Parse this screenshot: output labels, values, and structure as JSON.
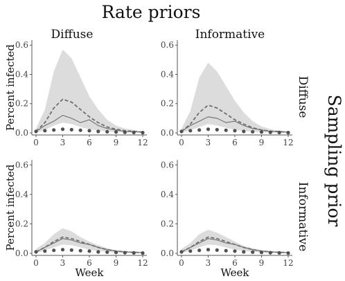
{
  "title": "Rate priors",
  "side_title": "Sampling prior",
  "col_strips": [
    "Diffuse",
    "Informative"
  ],
  "row_strips": [
    "Diffuse",
    "Informative"
  ],
  "xlabel": "Week",
  "ylabel": "Percent infected",
  "chart_data": [
    {
      "type": "area",
      "title": "",
      "panel": {
        "rate_prior": "Diffuse",
        "sampling_prior": "Diffuse"
      },
      "x": [
        0,
        1,
        2,
        3,
        4,
        5,
        6,
        7,
        8,
        9,
        10,
        11,
        12
      ],
      "xlim": [
        0,
        12
      ],
      "ylim": [
        0,
        0.62
      ],
      "xticks": [
        0,
        3,
        6,
        9,
        12
      ],
      "yticks": [
        0.0,
        0.2,
        0.4,
        0.6
      ],
      "tick_labels_y": [
        "0.0",
        "0.2",
        "0.4",
        "0.6"
      ],
      "tick_labels_x": [
        "0",
        "3",
        "6",
        "9",
        "12"
      ],
      "series": [
        {
          "style": "band",
          "lower": [
            0.0,
            0.02,
            0.05,
            0.07,
            0.06,
            0.04,
            0.025,
            0.015,
            0.01,
            0.005,
            0.003,
            0.002,
            0.001
          ],
          "upper": [
            0.03,
            0.16,
            0.42,
            0.57,
            0.51,
            0.38,
            0.25,
            0.16,
            0.09,
            0.05,
            0.03,
            0.02,
            0.01
          ]
        },
        {
          "style": "dashed",
          "values": [
            0.01,
            0.07,
            0.17,
            0.23,
            0.21,
            0.16,
            0.11,
            0.07,
            0.04,
            0.025,
            0.015,
            0.01,
            0.005
          ]
        },
        {
          "style": "solid",
          "values": [
            0.01,
            0.05,
            0.08,
            0.12,
            0.1,
            0.07,
            0.09,
            0.05,
            0.03,
            0.02,
            0.01,
            0.008,
            0.005
          ]
        },
        {
          "style": "points",
          "values": [
            0.01,
            0.015,
            0.02,
            0.025,
            0.022,
            0.018,
            0.015,
            0.01,
            0.008,
            0.006,
            0.004,
            0.003,
            0.002
          ]
        }
      ]
    },
    {
      "type": "area",
      "title": "",
      "panel": {
        "rate_prior": "Informative",
        "sampling_prior": "Diffuse"
      },
      "x": [
        0,
        1,
        2,
        3,
        4,
        5,
        6,
        7,
        8,
        9,
        10,
        11,
        12
      ],
      "xlim": [
        0,
        12
      ],
      "ylim": [
        0,
        0.62
      ],
      "xticks": [
        0,
        3,
        6,
        9,
        12
      ],
      "yticks": [
        0.0,
        0.2,
        0.4,
        0.6
      ],
      "tick_labels_y": [
        "0.0",
        "0.2",
        "0.4",
        "0.6"
      ],
      "tick_labels_x": [
        "0",
        "3",
        "6",
        "9",
        "12"
      ],
      "series": [
        {
          "style": "band",
          "lower": [
            0.0,
            0.02,
            0.04,
            0.06,
            0.05,
            0.035,
            0.02,
            0.012,
            0.008,
            0.004,
            0.003,
            0.002,
            0.001
          ],
          "upper": [
            0.03,
            0.15,
            0.38,
            0.48,
            0.42,
            0.32,
            0.22,
            0.14,
            0.08,
            0.045,
            0.025,
            0.015,
            0.01
          ]
        },
        {
          "style": "dashed",
          "values": [
            0.01,
            0.06,
            0.14,
            0.19,
            0.17,
            0.13,
            0.09,
            0.06,
            0.035,
            0.02,
            0.012,
            0.008,
            0.005
          ]
        },
        {
          "style": "solid",
          "values": [
            0.01,
            0.05,
            0.08,
            0.11,
            0.1,
            0.07,
            0.08,
            0.05,
            0.03,
            0.02,
            0.01,
            0.008,
            0.005
          ]
        },
        {
          "style": "points",
          "values": [
            0.01,
            0.015,
            0.02,
            0.025,
            0.022,
            0.018,
            0.015,
            0.01,
            0.008,
            0.006,
            0.004,
            0.003,
            0.002
          ]
        }
      ]
    },
    {
      "type": "area",
      "title": "",
      "panel": {
        "rate_prior": "Diffuse",
        "sampling_prior": "Informative"
      },
      "x": [
        0,
        1,
        2,
        3,
        4,
        5,
        6,
        7,
        8,
        9,
        10,
        11,
        12
      ],
      "xlim": [
        0,
        12
      ],
      "ylim": [
        0,
        0.62
      ],
      "xticks": [
        0,
        3,
        6,
        9,
        12
      ],
      "yticks": [
        0.0,
        0.2,
        0.4,
        0.6
      ],
      "tick_labels_y": [
        "0.0",
        "0.2",
        "0.4",
        "0.6"
      ],
      "tick_labels_x": [
        "0",
        "3",
        "6",
        "9",
        "12"
      ],
      "series": [
        {
          "style": "band",
          "lower": [
            0.0,
            0.02,
            0.04,
            0.06,
            0.055,
            0.04,
            0.025,
            0.015,
            0.01,
            0.005,
            0.003,
            0.002,
            0.001
          ],
          "upper": [
            0.03,
            0.07,
            0.13,
            0.17,
            0.15,
            0.11,
            0.08,
            0.055,
            0.035,
            0.02,
            0.015,
            0.01,
            0.008
          ]
        },
        {
          "style": "dashed",
          "values": [
            0.01,
            0.04,
            0.08,
            0.11,
            0.1,
            0.08,
            0.06,
            0.04,
            0.025,
            0.015,
            0.01,
            0.007,
            0.005
          ]
        },
        {
          "style": "solid",
          "values": [
            0.01,
            0.04,
            0.07,
            0.1,
            0.09,
            0.07,
            0.06,
            0.04,
            0.025,
            0.015,
            0.01,
            0.007,
            0.005
          ]
        },
        {
          "style": "points",
          "values": [
            0.01,
            0.015,
            0.02,
            0.025,
            0.022,
            0.018,
            0.015,
            0.01,
            0.008,
            0.006,
            0.004,
            0.003,
            0.002
          ]
        }
      ]
    },
    {
      "type": "area",
      "title": "",
      "panel": {
        "rate_prior": "Informative",
        "sampling_prior": "Informative"
      },
      "x": [
        0,
        1,
        2,
        3,
        4,
        5,
        6,
        7,
        8,
        9,
        10,
        11,
        12
      ],
      "xlim": [
        0,
        12
      ],
      "ylim": [
        0,
        0.62
      ],
      "xticks": [
        0,
        3,
        6,
        9,
        12
      ],
      "yticks": [
        0.0,
        0.2,
        0.4,
        0.6
      ],
      "tick_labels_y": [
        "0.0",
        "0.2",
        "0.4",
        "0.6"
      ],
      "tick_labels_x": [
        "0",
        "3",
        "6",
        "9",
        "12"
      ],
      "series": [
        {
          "style": "band",
          "lower": [
            0.0,
            0.02,
            0.04,
            0.06,
            0.055,
            0.04,
            0.025,
            0.015,
            0.01,
            0.005,
            0.003,
            0.002,
            0.001
          ],
          "upper": [
            0.03,
            0.07,
            0.13,
            0.16,
            0.14,
            0.11,
            0.08,
            0.05,
            0.035,
            0.02,
            0.015,
            0.01,
            0.008
          ]
        },
        {
          "style": "dashed",
          "values": [
            0.01,
            0.04,
            0.08,
            0.11,
            0.1,
            0.08,
            0.06,
            0.04,
            0.025,
            0.015,
            0.01,
            0.007,
            0.005
          ]
        },
        {
          "style": "solid",
          "values": [
            0.01,
            0.04,
            0.07,
            0.1,
            0.09,
            0.07,
            0.06,
            0.04,
            0.025,
            0.015,
            0.01,
            0.007,
            0.005
          ]
        },
        {
          "style": "points",
          "values": [
            0.01,
            0.015,
            0.02,
            0.025,
            0.022,
            0.018,
            0.015,
            0.01,
            0.008,
            0.006,
            0.004,
            0.003,
            0.002
          ]
        }
      ]
    }
  ],
  "colors": {
    "band": "#dcdcdc",
    "line": "#6e6e6e",
    "points": "#505050",
    "axis": "#555555"
  }
}
